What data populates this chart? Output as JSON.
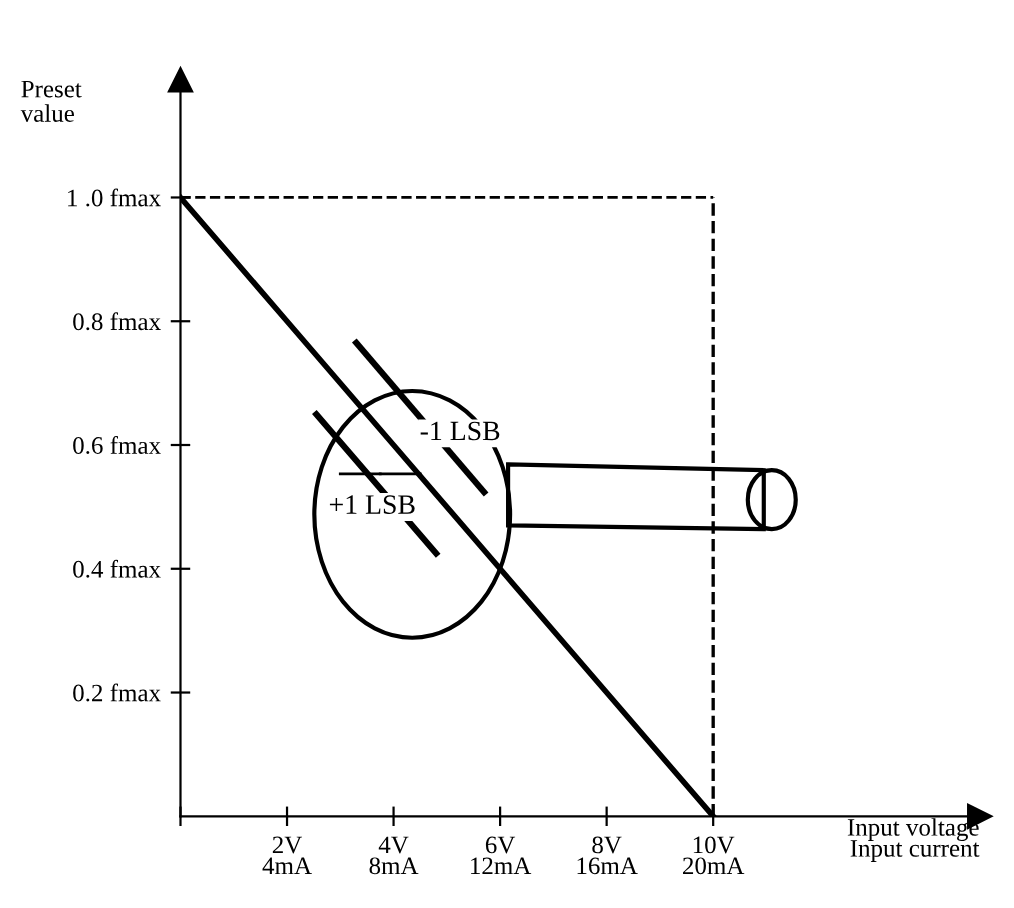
{
  "chart_data": {
    "type": "line",
    "xlabel": "Input voltage\nInput current",
    "ylabel": "Preset\nvalue",
    "categories": [
      null,
      "2V\n4mA",
      "4V\n8mA",
      "6V\n12mA",
      "8V\n16mA",
      "10V\n20mA"
    ],
    "series": [
      {
        "color": "#000000",
        "values": [
          1.0,
          0.8,
          0.6,
          0.4,
          0.2,
          0
        ]
      }
    ],
    "ylim": [
      0,
      1.19
    ],
    "yticks": [
      {
        "value": 0.2,
        "label": "0.2 fmax"
      },
      {
        "value": 0.4,
        "label": "0.4 fmax"
      },
      {
        "value": 0.6,
        "label": "0.6 fmax"
      },
      {
        "value": 0.8,
        "label": "0.8 fmax"
      },
      {
        "value": 1.0,
        "label": "1 .0 fmax"
      }
    ],
    "ref_lines": [
      {
        "axis": "x",
        "value": "10V\n20mA",
        "line_style": "dashed",
        "color": "#000000"
      },
      {
        "axis": "y",
        "value": 1.0,
        "line_style": "dashed",
        "color": "#000000"
      }
    ],
    "annotations": [
      "-1 LSB",
      "+1 LSB"
    ],
    "grid": false,
    "marker": "none",
    "line_style": "solid"
  }
}
